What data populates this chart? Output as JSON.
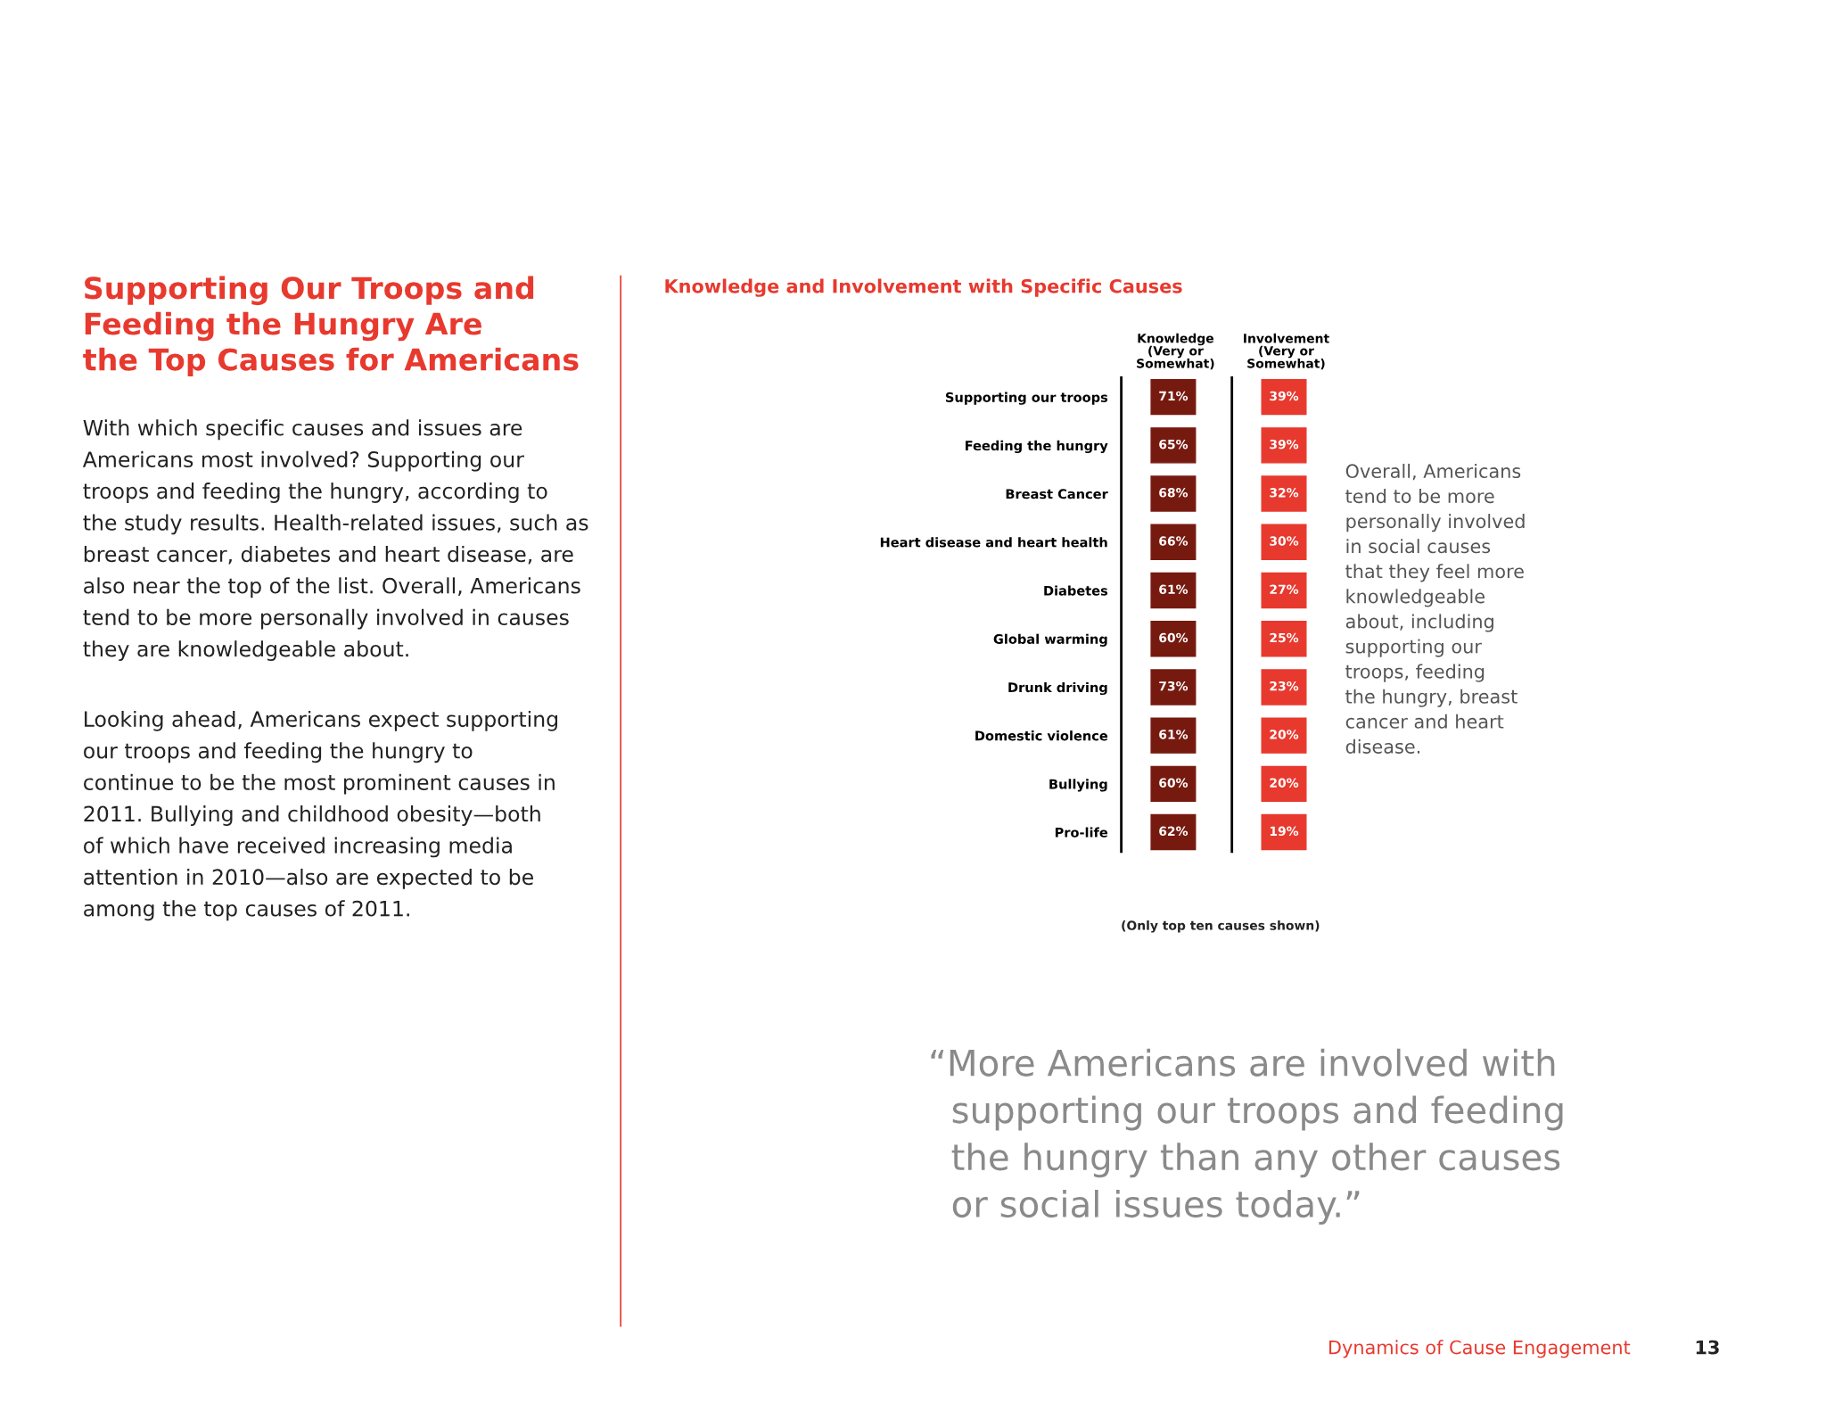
{
  "chart_data": {
    "type": "other",
    "title": "Knowledge and Involvement with Specific Causes",
    "categories": [
      "Supporting our troops",
      "Feeding the hungry",
      "Breast Cancer",
      "Heart disease and heart health",
      "Diabetes",
      "Global warming",
      "Drunk driving",
      "Domestic violence",
      "Bullying",
      "Pro-life"
    ],
    "series": [
      {
        "name": "Knowledge\n(Very or\nSomewhat)",
        "color": "#761a10",
        "values": [
          71,
          65,
          68,
          66,
          61,
          60,
          73,
          61,
          60,
          62
        ],
        "value_labels": [
          "71%",
          "65%",
          "68%",
          "66%",
          "61%",
          "60%",
          "73%",
          "61%",
          "60%",
          "62%"
        ]
      },
      {
        "name": "Involvement\n(Very or\nSomewhat)",
        "color": "#e8392e",
        "values": [
          39,
          39,
          32,
          30,
          27,
          25,
          23,
          20,
          20,
          19
        ],
        "value_labels": [
          "39%",
          "39%",
          "32%",
          "30%",
          "27%",
          "25%",
          "23%",
          "20%",
          "20%",
          "19%"
        ]
      }
    ],
    "annotations": [
      "Supporting Our Troops and\nFeeding the Hungry Are\nthe Top Causes for Americans",
      "With which specific causes and issues are\nAmericans most involved? Supporting our\ntroops and feeding the hungry, according to\nthe study results. Health-related issues, such as\nbreast cancer, diabetes and heart disease, are\nalso near the top of the list. Overall, Americans\ntend to be more personally involved in causes\nthey are knowledgeable about.",
      "Looking ahead, Americans expect supporting\nour troops and feeding the hungry to\ncontinue to be the most prominent causes in\n2011. Bullying and childhood obesity—both\nof which have received increasing media\nattention in 2010—also are expected to be\namong the top causes of 2011.",
      "Overall, Americans\ntend to be more\npersonally involved\nin social causes\nthat they feel more\nknowledgeable\nabout, including\nsupporting our\ntroops, feeding\nthe hungry, breast\ncancer and heart\ndisease.",
      "(Only top ten causes shown)",
      "“More Americans are involved with\n  supporting our troops and feeding\n  the hungry than any other causes\n  or social issues today.”",
      "Dynamics of Cause Engagement",
      "13"
    ]
  }
}
